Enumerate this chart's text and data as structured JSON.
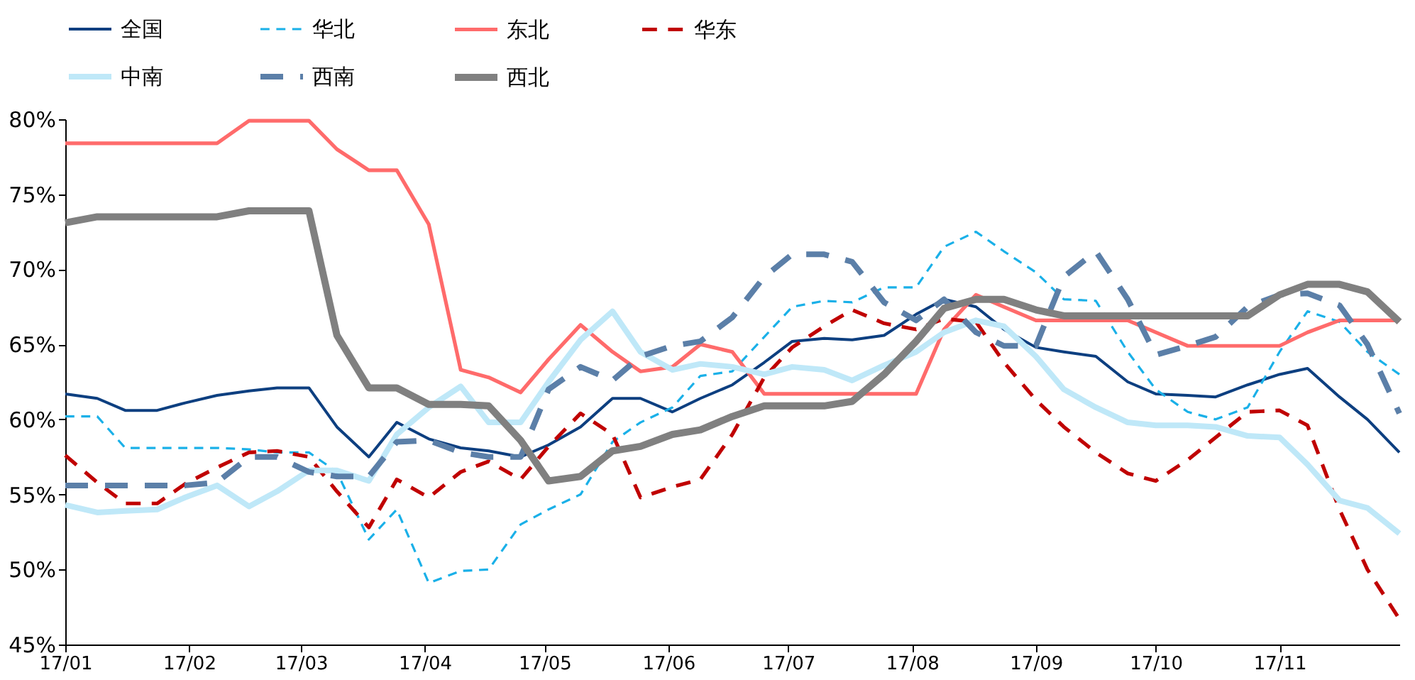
{
  "chart_data": {
    "type": "line",
    "legend": "top",
    "x": [
      "--01-01",
      "--01-09",
      "--01-16",
      "--01-24",
      "--01-31",
      "--02-08",
      "--02-16",
      "--02-23",
      "--03-03",
      "--03-10",
      "--03-18",
      "--03-25",
      "--04-02",
      "--04-10",
      "--04-17",
      "--04-25",
      "--05-02",
      "--05-10",
      "--05-18",
      "--05-25",
      "--06-02",
      "--06-09",
      "--06-17",
      "--06-25",
      "--07-02",
      "--07-10",
      "--07-17",
      "--07-25",
      "--08-02",
      "--08-09",
      "--08-17",
      "--08-24",
      "--09-01",
      "--09-08",
      "--09-16",
      "--09-24",
      "--10-01",
      "--10-09",
      "--10-16",
      "--10-24",
      "--11-01",
      "--11-08",
      "--11-16",
      "--11-23",
      "--12-01"
    ],
    "xlim": [
      "--01-01",
      "--12-01"
    ],
    "xticks": [
      {
        "value": "--01-01",
        "label": "17/01"
      },
      {
        "value": "--02-01",
        "label": "17/02"
      },
      {
        "value": "--03-01",
        "label": "17/03"
      },
      {
        "value": "--04-01",
        "label": "17/04"
      },
      {
        "value": "--05-01",
        "label": "17/05"
      },
      {
        "value": "--06-01",
        "label": "17/06"
      },
      {
        "value": "--07-01",
        "label": "17/07"
      },
      {
        "value": "--08-01",
        "label": "17/08"
      },
      {
        "value": "--09-01",
        "label": "17/09"
      },
      {
        "value": "--10-01",
        "label": "17/10"
      },
      {
        "value": "--11-01",
        "label": "17/11"
      }
    ],
    "ylim": [
      45,
      80
    ],
    "yticks": [
      {
        "value": 45,
        "label": "45%"
      },
      {
        "value": 50,
        "label": "50%"
      },
      {
        "value": 55,
        "label": "55%"
      },
      {
        "value": 60,
        "label": "60%"
      },
      {
        "value": 65,
        "label": "65%"
      },
      {
        "value": 70,
        "label": "70%"
      },
      {
        "value": 75,
        "label": "75%"
      },
      {
        "value": 80,
        "label": "80%"
      }
    ],
    "series": [
      {
        "name": "全国",
        "color": "#0d3f80",
        "line_style": "solid",
        "values": [
          61.7,
          61.4,
          60.6,
          60.6,
          61.1,
          61.6,
          61.9,
          62.1,
          62.1,
          59.5,
          57.5,
          59.8,
          58.7,
          58.1,
          57.9,
          57.5,
          58.3,
          59.5,
          61.4,
          61.4,
          60.5,
          61.4,
          62.3,
          63.8,
          65.2,
          65.4,
          65.3,
          65.6,
          67.0,
          68.0,
          67.5,
          66.0,
          64.8,
          64.5,
          64.2,
          62.5,
          61.7,
          61.6,
          61.5,
          62.3,
          63.0,
          63.4,
          61.5,
          60.0,
          57.8
        ]
      },
      {
        "name": "华北",
        "color": "#1ab0e8",
        "line_style": "dashed",
        "values": [
          60.2,
          60.2,
          58.1,
          58.1,
          58.1,
          58.1,
          58.0,
          57.8,
          57.8,
          56.5,
          52.0,
          54.0,
          49.1,
          49.9,
          50.0,
          53.0,
          54.0,
          55.0,
          58.5,
          59.8,
          60.8,
          62.9,
          63.2,
          65.5,
          67.5,
          67.9,
          67.8,
          68.8,
          68.8,
          71.5,
          72.5,
          71.2,
          69.8,
          68.0,
          67.9,
          64.5,
          62.0,
          60.5,
          60.0,
          60.8,
          64.5,
          67.2,
          66.5,
          64.5,
          63.0
        ]
      },
      {
        "name": "东北",
        "color": "#ff6b6b",
        "line_style": "solid",
        "values": [
          78.4,
          78.4,
          78.4,
          78.4,
          78.4,
          78.4,
          79.9,
          79.9,
          79.9,
          78.0,
          76.6,
          76.6,
          73.0,
          63.3,
          62.8,
          61.8,
          64.0,
          66.3,
          64.5,
          63.2,
          63.5,
          65.0,
          64.5,
          61.7,
          61.7,
          61.7,
          61.7,
          61.7,
          61.7,
          66.0,
          68.3,
          67.5,
          66.6,
          66.6,
          66.6,
          66.6,
          65.8,
          64.9,
          64.9,
          64.9,
          64.9,
          65.8,
          66.6,
          66.6,
          66.6
        ]
      },
      {
        "name": "华东",
        "color": "#c00000",
        "line_style": "dashed",
        "values": [
          57.6,
          55.8,
          54.4,
          54.4,
          55.7,
          56.8,
          57.8,
          57.9,
          57.5,
          55.2,
          52.8,
          56.0,
          54.8,
          56.5,
          57.2,
          56.0,
          58.2,
          60.4,
          59.0,
          54.8,
          55.5,
          56.0,
          59.0,
          62.8,
          64.8,
          66.2,
          67.3,
          66.4,
          66.0,
          66.7,
          66.5,
          63.8,
          61.3,
          59.5,
          57.8,
          56.4,
          55.9,
          57.3,
          58.8,
          60.5,
          60.6,
          59.6,
          54.0,
          50.0,
          46.7
        ]
      },
      {
        "name": "中南",
        "color": "#bfe8f8",
        "line_style": "solid",
        "values": [
          54.3,
          53.8,
          53.9,
          54.0,
          54.8,
          55.6,
          54.2,
          55.2,
          56.6,
          56.6,
          55.9,
          59.0,
          60.8,
          62.2,
          59.8,
          59.8,
          62.5,
          65.3,
          67.2,
          64.5,
          63.3,
          63.7,
          63.5,
          63.0,
          63.5,
          63.3,
          62.6,
          63.6,
          64.5,
          65.8,
          66.6,
          66.2,
          64.2,
          62.0,
          60.8,
          59.8,
          59.6,
          59.6,
          59.5,
          58.9,
          58.8,
          57.0,
          54.6,
          54.1,
          52.4
        ]
      },
      {
        "name": "西南",
        "color": "#5b7fa8",
        "line_style": "dashed",
        "values": [
          55.6,
          55.6,
          55.6,
          55.6,
          55.6,
          55.8,
          57.5,
          57.5,
          56.5,
          56.2,
          56.2,
          58.5,
          58.6,
          57.8,
          57.5,
          57.5,
          62.0,
          63.5,
          62.6,
          64.2,
          64.9,
          65.2,
          66.8,
          69.5,
          71.0,
          71.0,
          70.5,
          67.8,
          66.6,
          68.0,
          65.8,
          64.9,
          64.9,
          69.5,
          71.2,
          68.0,
          64.3,
          64.9,
          65.5,
          67.5,
          68.3,
          68.4,
          67.6,
          65.0,
          60.4
        ]
      },
      {
        "name": "西北",
        "color": "#808080",
        "line_style": "solid",
        "values": [
          73.1,
          73.5,
          73.5,
          73.5,
          73.5,
          73.5,
          73.9,
          73.9,
          73.9,
          65.6,
          62.1,
          62.1,
          61.0,
          61.0,
          60.9,
          58.6,
          55.9,
          56.2,
          57.9,
          58.2,
          59.0,
          59.3,
          60.2,
          60.9,
          60.9,
          60.9,
          61.2,
          63.0,
          65.2,
          67.4,
          68.0,
          68.0,
          67.3,
          66.9,
          66.9,
          66.9,
          66.9,
          66.9,
          66.9,
          66.9,
          68.3,
          69.0,
          69.0,
          68.5,
          66.5
        ]
      }
    ]
  }
}
